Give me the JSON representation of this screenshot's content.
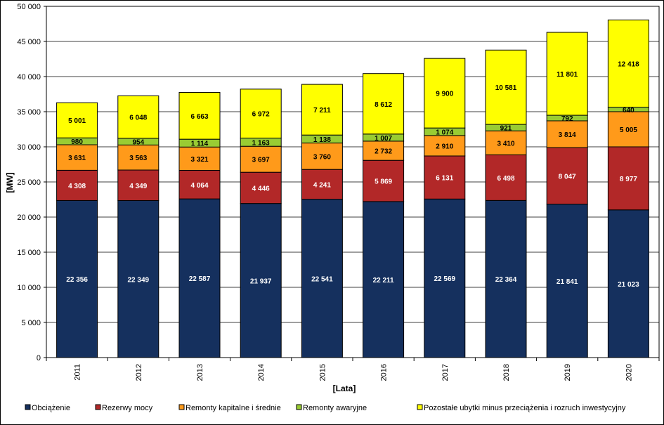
{
  "chart_data": {
    "type": "bar",
    "stacked": true,
    "title": "",
    "xlabel": "[Lata]",
    "ylabel": "[MW]",
    "ylim": [
      0,
      50000
    ],
    "ytick_step": 5000,
    "yticks": [
      "0",
      "5 000",
      "10 000",
      "15 000",
      "20 000",
      "25 000",
      "30 000",
      "35 000",
      "40 000",
      "45 000",
      "50 000"
    ],
    "grid": true,
    "legend_position": "bottom",
    "categories": [
      "2011",
      "2012",
      "2013",
      "2014",
      "2015",
      "2016",
      "2017",
      "2018",
      "2019",
      "2020"
    ],
    "series": [
      {
        "name": "Obciążenie",
        "color": "#15305e",
        "label_color": "#ffffff",
        "values": [
          22356,
          22349,
          22587,
          21937,
          22541,
          22211,
          22569,
          22364,
          21841,
          21023
        ],
        "labels": [
          "22 356",
          "22 349",
          "22 587",
          "21 937",
          "22 541",
          "22 211",
          "22 569",
          "22 364",
          "21 841",
          "21 023"
        ]
      },
      {
        "name": "Rezerwy mocy",
        "color": "#b22828",
        "label_color": "#ffffff",
        "values": [
          4308,
          4349,
          4064,
          4446,
          4241,
          5869,
          6131,
          6498,
          8047,
          8977
        ],
        "labels": [
          "4 308",
          "4 349",
          "4 064",
          "4 446",
          "4 241",
          "5 869",
          "6 131",
          "6 498",
          "8 047",
          "8 977"
        ]
      },
      {
        "name": "Remonty kapitalne i średnie",
        "color": "#ff9a1a",
        "label_color": "#000000",
        "values": [
          3631,
          3563,
          3321,
          3697,
          3760,
          2732,
          2910,
          3410,
          3814,
          5005
        ],
        "labels": [
          "3 631",
          "3 563",
          "3 321",
          "3 697",
          "3 760",
          "2 732",
          "2 910",
          "3 410",
          "3 814",
          "5 005"
        ]
      },
      {
        "name": "Remonty awaryjne",
        "color": "#99cc33",
        "label_color": "#000000",
        "values": [
          980,
          954,
          1114,
          1163,
          1138,
          1007,
          1074,
          921,
          792,
          640
        ],
        "labels": [
          "980",
          "954",
          "1 114",
          "1 163",
          "1 138",
          "1 007",
          "1 074",
          "921",
          "792",
          "640"
        ]
      },
      {
        "name": "Pozostałe ubytki minus przeciążenia i rozruch inwestycyjny",
        "color": "#ffff00",
        "label_color": "#000000",
        "values": [
          5001,
          6048,
          6663,
          6972,
          7211,
          8612,
          9900,
          10581,
          11801,
          12418
        ],
        "labels": [
          "5 001",
          "6 048",
          "6 663",
          "6 972",
          "7 211",
          "8 612",
          "9 900",
          "10 581",
          "11 801",
          "12 418"
        ]
      }
    ]
  }
}
